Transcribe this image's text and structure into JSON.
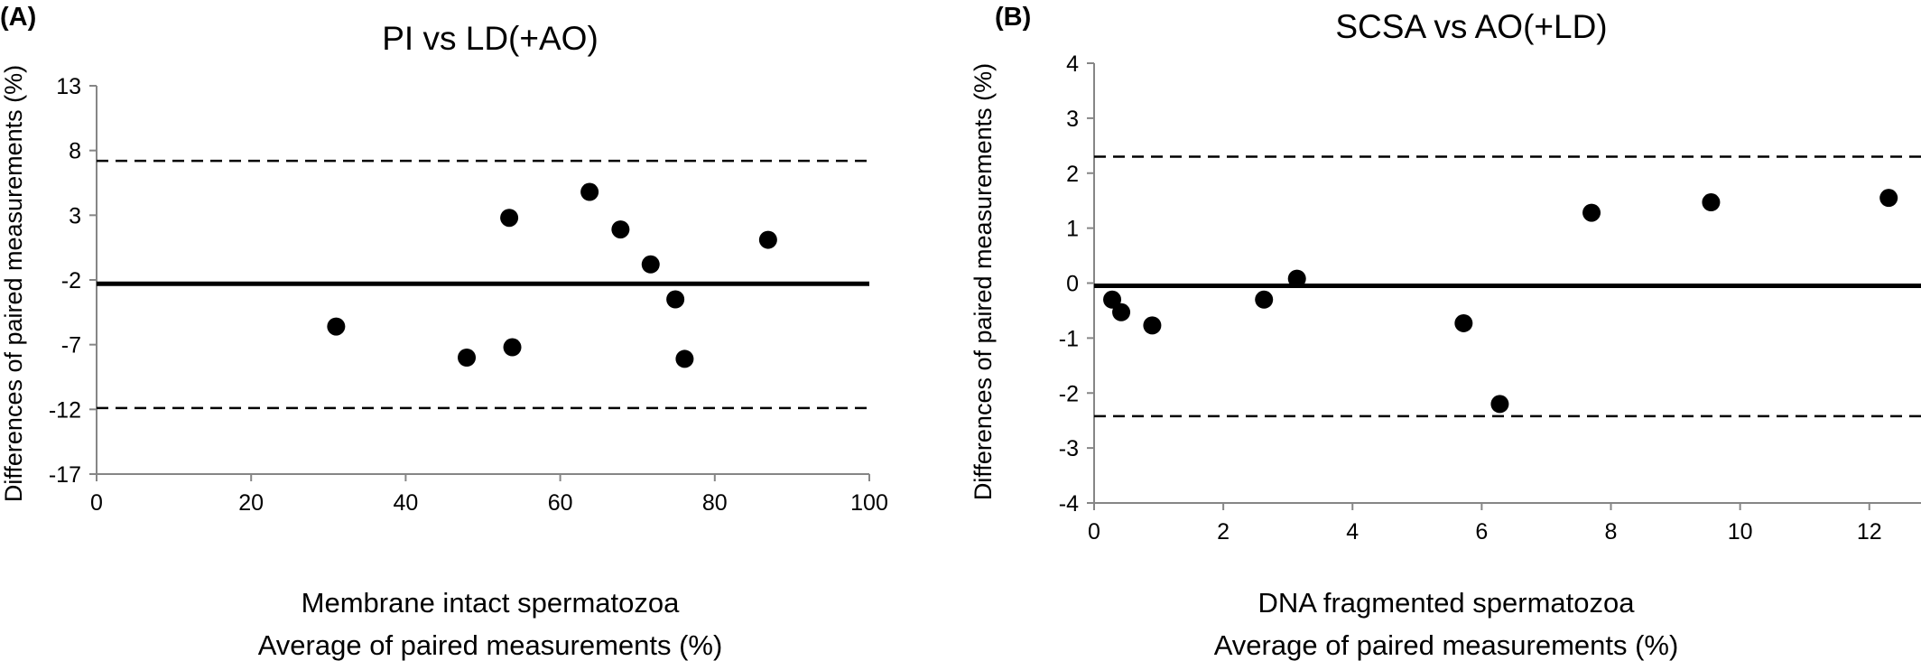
{
  "chart_data": [
    {
      "type": "scatter",
      "panel_label": "(A)",
      "title": "PI vs LD(+AO)",
      "xlabel_line1": "Membrane intact spermatozoa",
      "xlabel_line2": "Average of paired measurements (%)",
      "ylabel": "Differences of paired measurements (%)",
      "xlim": [
        0,
        100
      ],
      "ylim": [
        -17,
        13
      ],
      "xticks": [
        "0",
        "20",
        "40",
        "60",
        "80",
        "100"
      ],
      "yticks": [
        "13",
        "8",
        "3",
        "-2",
        "-7",
        "-12",
        "-17"
      ],
      "mean_line": -2.3,
      "limits_of_agreement": [
        7.2,
        -11.9
      ],
      "points": [
        {
          "x": 31,
          "y": -5.6
        },
        {
          "x": 47.9,
          "y": -8.0
        },
        {
          "x": 53.4,
          "y": 2.8
        },
        {
          "x": 53.8,
          "y": -7.2
        },
        {
          "x": 63.8,
          "y": 4.8
        },
        {
          "x": 67.8,
          "y": 1.9
        },
        {
          "x": 71.7,
          "y": -0.8
        },
        {
          "x": 74.9,
          "y": -3.5
        },
        {
          "x": 76.1,
          "y": -8.1
        },
        {
          "x": 86.9,
          "y": 1.1
        }
      ]
    },
    {
      "type": "scatter",
      "panel_label": "(B)",
      "title": "SCSA vs AO(+LD)",
      "xlabel_line1": "DNA fragmented spermatozoa",
      "xlabel_line2": "Average of paired measurements (%)",
      "ylabel": "Differences of paired measurements (%)",
      "xlim": [
        0,
        12.8
      ],
      "ylim": [
        -4,
        4
      ],
      "xticks": [
        "0",
        "2",
        "4",
        "6",
        "8",
        "10",
        "12"
      ],
      "yticks": [
        "4",
        "3",
        "2",
        "1",
        "0",
        "-1",
        "-2",
        "-3",
        "-4"
      ],
      "mean_line": -0.05,
      "limits_of_agreement": [
        2.3,
        -2.42
      ],
      "points": [
        {
          "x": 0.28,
          "y": -0.3
        },
        {
          "x": 0.42,
          "y": -0.53
        },
        {
          "x": 0.9,
          "y": -0.77
        },
        {
          "x": 2.63,
          "y": -0.3
        },
        {
          "x": 3.14,
          "y": 0.08
        },
        {
          "x": 5.72,
          "y": -0.73
        },
        {
          "x": 6.28,
          "y": -2.2
        },
        {
          "x": 7.7,
          "y": 1.28
        },
        {
          "x": 9.55,
          "y": 1.47
        },
        {
          "x": 12.3,
          "y": 1.55
        }
      ]
    }
  ]
}
